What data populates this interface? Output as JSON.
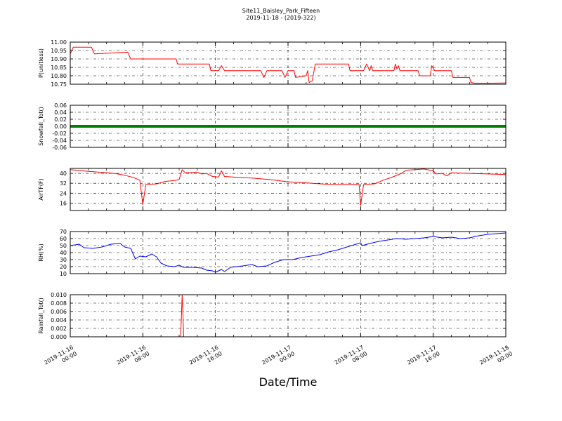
{
  "figure": {
    "title_line1": "Site11_Baisley_Park_Fifteen",
    "title_line2": "2019-11-18 - (2019-322)",
    "xlabel": "Date/Time"
  },
  "chart_data": {
    "type": "line",
    "shared_x": {
      "range": [
        "2019-11-16 00:00",
        "2019-11-18 00:00"
      ],
      "ticks": [
        {
          "t": "2019-11-16 00:00",
          "label": [
            "2019-11-16",
            "00:00"
          ]
        },
        {
          "t": "2019-11-16 08:00",
          "label": [
            "2019-11-16",
            "08:00"
          ]
        },
        {
          "t": "2019-11-16 16:00",
          "label": [
            "2019-11-16",
            "16:00"
          ]
        },
        {
          "t": "2019-11-17 00:00",
          "label": [
            "2019-11-17",
            "00:00"
          ]
        },
        {
          "t": "2019-11-17 08:00",
          "label": [
            "2019-11-17",
            "08:00"
          ]
        },
        {
          "t": "2019-11-17 16:00",
          "label": [
            "2019-11-17",
            "16:00"
          ]
        },
        {
          "t": "2019-11-18 00:00",
          "label": [
            "2019-11-18",
            "00:00"
          ]
        }
      ],
      "grid": true
    },
    "panels": [
      {
        "ylabel": "P(unitless)",
        "color": "#ff0000",
        "ylim": [
          10.75,
          11.0
        ],
        "yticks": [
          "11.00",
          "10.95",
          "10.90",
          "10.85",
          "10.80",
          "10.75"
        ],
        "series_type": "step-line",
        "points": [
          [
            "2019-11-16 00:00",
            10.93
          ],
          [
            "2019-11-16 00:20",
            10.97
          ],
          [
            "2019-11-16 02:20",
            10.97
          ],
          [
            "2019-11-16 02:40",
            10.93
          ],
          [
            "2019-11-16 06:20",
            10.94
          ],
          [
            "2019-11-16 06:40",
            10.9
          ],
          [
            "2019-11-16 11:40",
            10.9
          ],
          [
            "2019-11-16 11:50",
            10.87
          ],
          [
            "2019-11-16 15:20",
            10.87
          ],
          [
            "2019-11-16 15:30",
            10.83
          ],
          [
            "2019-11-16 16:20",
            10.83
          ],
          [
            "2019-11-16 16:40",
            10.86
          ],
          [
            "2019-11-16 17:00",
            10.83
          ],
          [
            "2019-11-16 21:00",
            10.83
          ],
          [
            "2019-11-16 21:20",
            10.79
          ],
          [
            "2019-11-16 21:40",
            10.83
          ],
          [
            "2019-11-16 23:20",
            10.83
          ],
          [
            "2019-11-16 23:40",
            10.79
          ],
          [
            "2019-11-17 00:00",
            10.83
          ],
          [
            "2019-11-17 00:40",
            10.83
          ],
          [
            "2019-11-17 00:50",
            10.79
          ],
          [
            "2019-11-17 02:00",
            10.8
          ],
          [
            "2019-11-17 02:10",
            10.83
          ],
          [
            "2019-11-17 02:20",
            10.76
          ],
          [
            "2019-11-17 02:40",
            10.77
          ],
          [
            "2019-11-17 03:00",
            10.87
          ],
          [
            "2019-11-17 06:40",
            10.87
          ],
          [
            "2019-11-17 06:50",
            10.83
          ],
          [
            "2019-11-17 08:20",
            10.83
          ],
          [
            "2019-11-17 08:40",
            10.87
          ],
          [
            "2019-11-17 09:00",
            10.83
          ],
          [
            "2019-11-17 09:10",
            10.86
          ],
          [
            "2019-11-17 09:20",
            10.83
          ],
          [
            "2019-11-17 11:40",
            10.83
          ],
          [
            "2019-11-17 11:50",
            10.87
          ],
          [
            "2019-11-17 12:00",
            10.84
          ],
          [
            "2019-11-17 12:10",
            10.86
          ],
          [
            "2019-11-17 12:20",
            10.83
          ],
          [
            "2019-11-17 14:20",
            10.83
          ],
          [
            "2019-11-17 14:30",
            10.8
          ],
          [
            "2019-11-17 15:40",
            10.8
          ],
          [
            "2019-11-17 15:50",
            10.86
          ],
          [
            "2019-11-17 16:10",
            10.83
          ],
          [
            "2019-11-17 18:00",
            10.83
          ],
          [
            "2019-11-17 18:10",
            10.79
          ],
          [
            "2019-11-17 20:00",
            10.79
          ],
          [
            "2019-11-17 20:10",
            10.76
          ],
          [
            "2019-11-17 20:40",
            10.755
          ],
          [
            "2019-11-18 00:00",
            10.757
          ]
        ]
      },
      {
        "ylabel": "Snowfall_Tot()",
        "color": "#008000",
        "ylim": [
          -0.06,
          0.06
        ],
        "yticks": [
          "0.06",
          "0.04",
          "0.02",
          "0.00",
          "-0.02",
          "-0.04",
          "-0.06"
        ],
        "series_type": "thick-line",
        "points": [
          [
            "2019-11-16 00:00",
            0.0
          ],
          [
            "2019-11-18 00:00",
            0.0
          ]
        ]
      },
      {
        "ylabel": "AirTF(F)",
        "color": "#ff0000",
        "ylim": [
          10,
          44
        ],
        "yticks": [
          "40",
          "32",
          "24",
          "16"
        ],
        "series_type": "line",
        "points": [
          [
            "2019-11-16 00:00",
            43.0
          ],
          [
            "2019-11-16 01:00",
            42.3
          ],
          [
            "2019-11-16 02:00",
            41.6
          ],
          [
            "2019-11-16 03:00",
            41.0
          ],
          [
            "2019-11-16 04:00",
            40.6
          ],
          [
            "2019-11-16 05:00",
            39.8
          ],
          [
            "2019-11-16 06:00",
            38.5
          ],
          [
            "2019-11-16 07:00",
            36.5
          ],
          [
            "2019-11-16 07:40",
            34.5
          ],
          [
            "2019-11-16 08:00",
            15.0
          ],
          [
            "2019-11-16 08:20",
            31.0
          ],
          [
            "2019-11-16 09:30",
            31.5
          ],
          [
            "2019-11-16 10:30",
            33.5
          ],
          [
            "2019-11-16 11:30",
            34.2
          ],
          [
            "2019-11-16 12:00",
            35.0
          ],
          [
            "2019-11-16 12:20",
            43.0
          ],
          [
            "2019-11-16 12:40",
            40.5
          ],
          [
            "2019-11-16 14:00",
            41.0
          ],
          [
            "2019-11-16 14:30",
            39.5
          ],
          [
            "2019-11-16 15:00",
            40.0
          ],
          [
            "2019-11-16 15:40",
            37.5
          ],
          [
            "2019-11-16 16:20",
            37.0
          ],
          [
            "2019-11-16 16:40",
            42.0
          ],
          [
            "2019-11-16 17:00",
            37.5
          ],
          [
            "2019-11-16 18:00",
            37.0
          ],
          [
            "2019-11-16 20:00",
            36.2
          ],
          [
            "2019-11-16 22:00",
            35.0
          ],
          [
            "2019-11-17 00:00",
            33.2
          ],
          [
            "2019-11-17 02:00",
            32.3
          ],
          [
            "2019-11-17 04:00",
            31.3
          ],
          [
            "2019-11-17 06:00",
            31.0
          ],
          [
            "2019-11-17 07:30",
            31.2
          ],
          [
            "2019-11-17 07:50",
            31.0
          ],
          [
            "2019-11-17 08:00",
            14.0
          ],
          [
            "2019-11-17 08:20",
            31.0
          ],
          [
            "2019-11-17 09:30",
            31.5
          ],
          [
            "2019-11-17 10:30",
            34.5
          ],
          [
            "2019-11-17 11:30",
            37.0
          ],
          [
            "2019-11-17 12:30",
            40.0
          ],
          [
            "2019-11-17 13:00",
            42.5
          ],
          [
            "2019-11-17 14:00",
            43.0
          ],
          [
            "2019-11-17 15:00",
            43.5
          ],
          [
            "2019-11-17 16:00",
            42.0
          ],
          [
            "2019-11-17 16:20",
            39.5
          ],
          [
            "2019-11-17 17:00",
            40.0
          ],
          [
            "2019-11-17 17:30",
            38.0
          ],
          [
            "2019-11-17 18:00",
            40.5
          ],
          [
            "2019-11-17 20:00",
            40.0
          ],
          [
            "2019-11-17 22:00",
            39.5
          ],
          [
            "2019-11-18 00:00",
            39.0
          ]
        ]
      },
      {
        "ylabel": "RH(%)",
        "color": "#0000ff",
        "ylim": [
          10,
          70
        ],
        "yticks": [
          "70",
          "60",
          "50",
          "40",
          "30",
          "20",
          "10"
        ],
        "series_type": "line",
        "points": [
          [
            "2019-11-16 00:00",
            50
          ],
          [
            "2019-11-16 01:00",
            52
          ],
          [
            "2019-11-16 01:30",
            47
          ],
          [
            "2019-11-16 02:30",
            46
          ],
          [
            "2019-11-16 03:30",
            48
          ],
          [
            "2019-11-16 04:30",
            52
          ],
          [
            "2019-11-16 05:30",
            53
          ],
          [
            "2019-11-16 06:00",
            48
          ],
          [
            "2019-11-16 06:40",
            46
          ],
          [
            "2019-11-16 07:10",
            31
          ],
          [
            "2019-11-16 07:40",
            35
          ],
          [
            "2019-11-16 08:20",
            34
          ],
          [
            "2019-11-16 09:00",
            38
          ],
          [
            "2019-11-16 09:30",
            34
          ],
          [
            "2019-11-16 10:00",
            25
          ],
          [
            "2019-11-16 10:40",
            21
          ],
          [
            "2019-11-16 11:30",
            20
          ],
          [
            "2019-11-16 12:00",
            22
          ],
          [
            "2019-11-16 12:30",
            19
          ],
          [
            "2019-11-16 13:30",
            19
          ],
          [
            "2019-11-16 14:30",
            18
          ],
          [
            "2019-11-16 15:00",
            15
          ],
          [
            "2019-11-16 15:40",
            14
          ],
          [
            "2019-11-16 16:00",
            12
          ],
          [
            "2019-11-16 16:40",
            16
          ],
          [
            "2019-11-16 17:00",
            13
          ],
          [
            "2019-11-16 17:40",
            19
          ],
          [
            "2019-11-16 19:00",
            21
          ],
          [
            "2019-11-16 20:00",
            23
          ],
          [
            "2019-11-16 20:40",
            20
          ],
          [
            "2019-11-16 21:40",
            21
          ],
          [
            "2019-11-16 22:30",
            26
          ],
          [
            "2019-11-16 23:30",
            30
          ],
          [
            "2019-11-17 00:30",
            30
          ],
          [
            "2019-11-17 01:30",
            33
          ],
          [
            "2019-11-17 02:30",
            35
          ],
          [
            "2019-11-17 03:30",
            37
          ],
          [
            "2019-11-17 04:30",
            41
          ],
          [
            "2019-11-17 05:30",
            44
          ],
          [
            "2019-11-17 06:30",
            48
          ],
          [
            "2019-11-17 07:30",
            52
          ],
          [
            "2019-11-17 08:00",
            54
          ],
          [
            "2019-11-17 08:10",
            50
          ],
          [
            "2019-11-17 09:00",
            53
          ],
          [
            "2019-11-17 10:00",
            56
          ],
          [
            "2019-11-17 11:00",
            58
          ],
          [
            "2019-11-17 12:00",
            60
          ],
          [
            "2019-11-17 13:00",
            59
          ],
          [
            "2019-11-17 14:00",
            60
          ],
          [
            "2019-11-17 15:00",
            61
          ],
          [
            "2019-11-17 16:00",
            63
          ],
          [
            "2019-11-17 17:00",
            61
          ],
          [
            "2019-11-17 18:00",
            62
          ],
          [
            "2019-11-17 19:00",
            60
          ],
          [
            "2019-11-17 20:00",
            61
          ],
          [
            "2019-11-17 21:00",
            64
          ],
          [
            "2019-11-17 22:00",
            66
          ],
          [
            "2019-11-18 00:00",
            68
          ]
        ]
      },
      {
        "ylabel": "Rainfall_Tot()",
        "color": "#ff0000",
        "ylim": [
          0.0,
          0.01
        ],
        "yticks": [
          "0.010",
          "0.008",
          "0.006",
          "0.004",
          "0.002",
          "0.000"
        ],
        "series_type": "line",
        "points": [
          [
            "2019-11-16 00:00",
            0.0
          ],
          [
            "2019-11-16 12:10",
            0.0
          ],
          [
            "2019-11-16 12:20",
            0.01
          ],
          [
            "2019-11-16 12:30",
            0.0
          ],
          [
            "2019-11-18 00:00",
            0.0
          ]
        ]
      }
    ]
  }
}
